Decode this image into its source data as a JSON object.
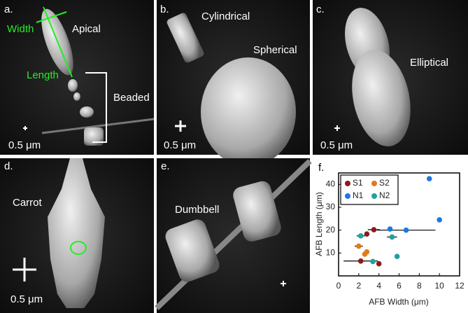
{
  "panels": [
    {
      "label": "a.",
      "annotations": [
        "Width",
        "Apical",
        "Length",
        "Beaded"
      ],
      "scale": "0.5 μm"
    },
    {
      "label": "b.",
      "annotations": [
        "Cylindrical",
        "Spherical"
      ],
      "scale": "0.5 μm"
    },
    {
      "label": "c.",
      "annotations": [
        "Elliptical"
      ],
      "scale": "0.5 μm"
    },
    {
      "label": "d.",
      "annotations": [
        "Carrot"
      ],
      "scale": "0.5 μm"
    },
    {
      "label": "e.",
      "annotations": [
        "Dumbbell"
      ]
    }
  ],
  "chart_data": {
    "type": "scatter",
    "label": "f.",
    "xlabel": "AFB Width (μm)",
    "ylabel": "AFB Length (μm)",
    "xlim": [
      0,
      12
    ],
    "xticks": [
      0,
      2,
      4,
      6,
      8,
      10,
      12
    ],
    "ylim": [
      0,
      45
    ],
    "yticks": [
      10,
      20,
      30,
      40
    ],
    "legend": "top-left",
    "series": [
      {
        "name": "S1",
        "color": "#8b1a1a",
        "x": [
          2.2,
          2.8,
          3.5,
          4.0
        ],
        "y": [
          6.5,
          18.3,
          20.2,
          5.3
        ],
        "xerr": [
          1.7,
          null,
          0.6,
          null
        ]
      },
      {
        "name": "S2",
        "color": "#e07b1a",
        "x": [
          2.0,
          2.6,
          2.8
        ],
        "y": [
          13,
          9.5,
          10.5
        ],
        "xerr": [
          0.4,
          null,
          null
        ]
      },
      {
        "name": "N1",
        "color": "#1f77e0",
        "x": [
          5.1,
          6.7,
          9.0,
          10.0
        ],
        "y": [
          20.5,
          20,
          42.5,
          24.5
        ],
        "xerr": [
          null,
          2.9,
          null,
          null
        ]
      },
      {
        "name": "N2",
        "color": "#20a0a0",
        "x": [
          2.2,
          3.4,
          5.3,
          5.8
        ],
        "y": [
          17.5,
          6.3,
          17,
          8.5
        ],
        "xerr": [
          0.4,
          null,
          0.5,
          null
        ]
      }
    ]
  }
}
